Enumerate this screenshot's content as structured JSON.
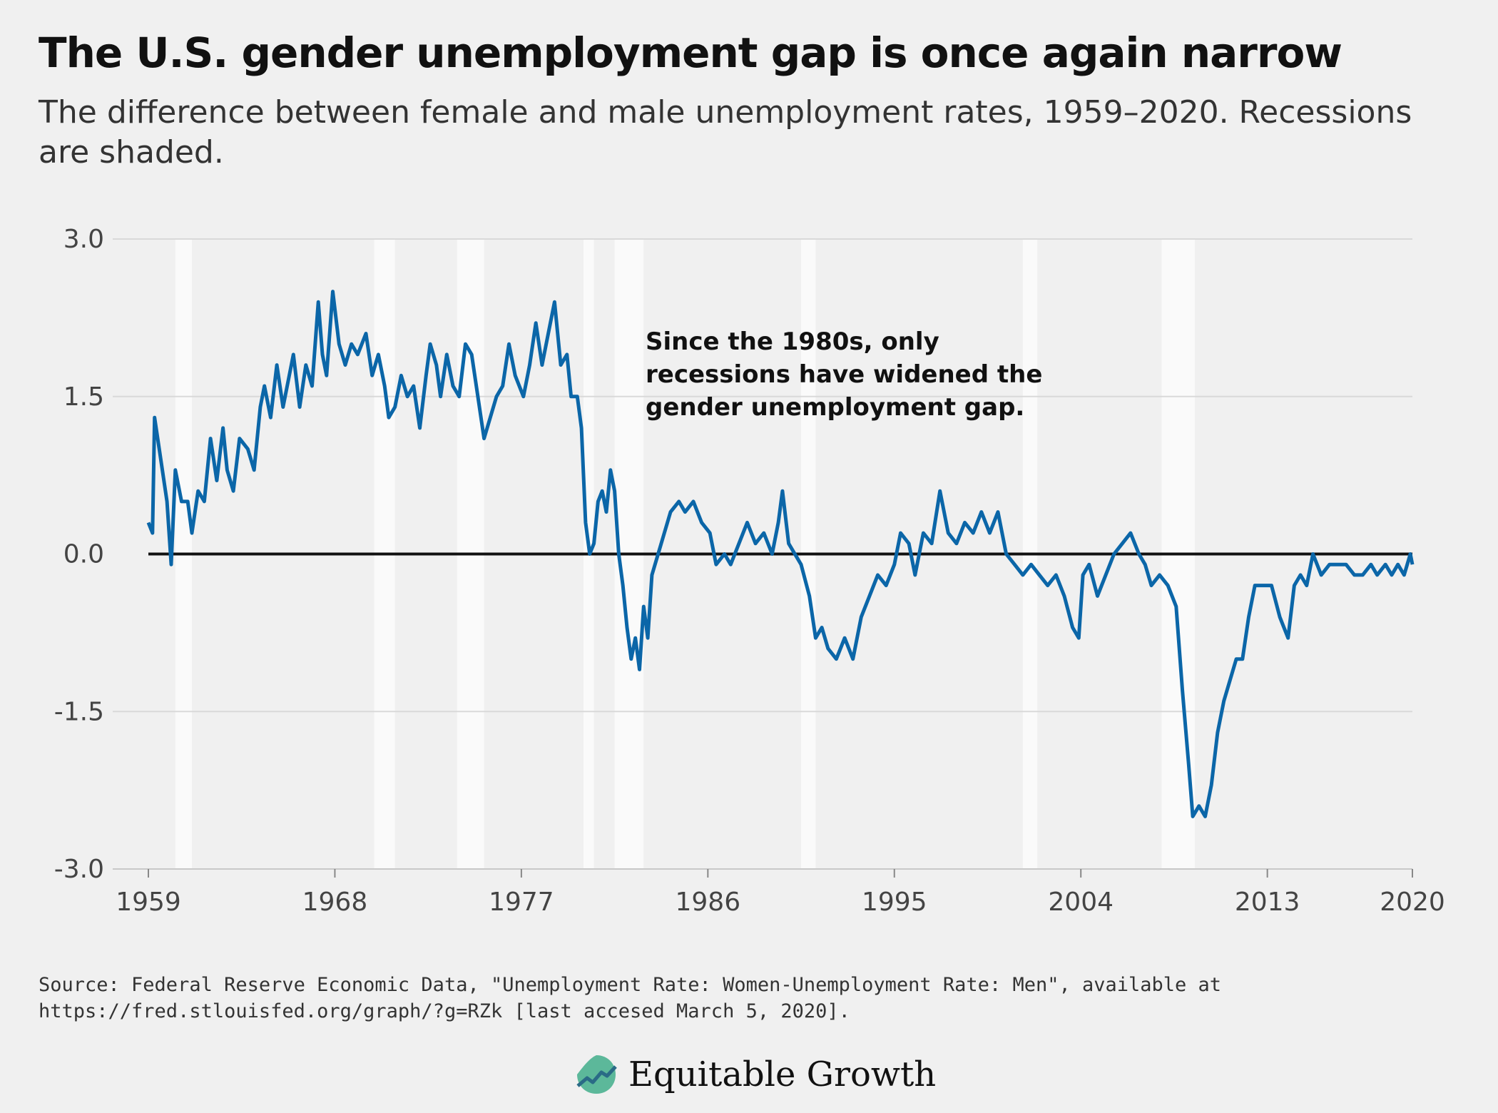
{
  "title": "The U.S. gender unemployment gap is once again narrow",
  "subtitle": "The difference between female and male unemployment rates, 1959–2020. Recessions are shaded.",
  "source": "Source: Federal Reserve Economic Data, \"Unemployment Rate: Women-Unemployment Rate: Men\", available at https://fred.stlouisfed.org/graph/?g=RZk [last accesed March 5, 2020].",
  "brand": {
    "name": "Equitable Growth",
    "logo_icon": "growth-leaf-chart-icon"
  },
  "colors": {
    "line": "#0b66a8",
    "zero_line": "#111111",
    "recession": "#fafafa",
    "grid": "#d9d9d9",
    "background": "#f0f0f0"
  },
  "chart_data": {
    "type": "line",
    "title": "",
    "xlabel": "",
    "ylabel": "",
    "xlim": [
      1959,
      2020
    ],
    "ylim": [
      -3.0,
      3.0
    ],
    "x_ticks": [
      1959,
      1968,
      1977,
      1986,
      1995,
      2004,
      2013,
      2020
    ],
    "y_ticks": [
      3.0,
      1.5,
      0.0,
      -1.5,
      -3.0
    ],
    "y_tick_labels": [
      "3.0",
      "1.5",
      "0.0",
      "-1.5",
      "-3.0"
    ],
    "grid": true,
    "recessions": [
      [
        1960.3,
        1961.1
      ],
      [
        1969.9,
        1970.9
      ],
      [
        1973.9,
        1975.2
      ],
      [
        1980.0,
        1980.5
      ],
      [
        1981.5,
        1982.9
      ],
      [
        1990.5,
        1991.2
      ],
      [
        2001.2,
        2001.9
      ],
      [
        2007.9,
        2009.5
      ]
    ],
    "annotation": "Since the 1980s, only recessions have widened the gender unemployment gap.",
    "annotation_lines": [
      "Since the 1980s, only",
      "recessions have widened the",
      "gender unemployment gap."
    ],
    "series": [
      {
        "values": [
          [
            1959.0,
            0.3
          ],
          [
            1959.2,
            0.2
          ],
          [
            1959.3,
            1.3
          ],
          [
            1959.6,
            0.9
          ],
          [
            1959.9,
            0.5
          ],
          [
            1960.1,
            -0.1
          ],
          [
            1960.3,
            0.8
          ],
          [
            1960.6,
            0.5
          ],
          [
            1960.9,
            0.5
          ],
          [
            1961.1,
            0.2
          ],
          [
            1961.4,
            0.6
          ],
          [
            1961.7,
            0.5
          ],
          [
            1962.0,
            1.1
          ],
          [
            1962.3,
            0.7
          ],
          [
            1962.6,
            1.2
          ],
          [
            1962.8,
            0.8
          ],
          [
            1963.1,
            0.6
          ],
          [
            1963.4,
            1.1
          ],
          [
            1963.8,
            1.0
          ],
          [
            1964.1,
            0.8
          ],
          [
            1964.4,
            1.4
          ],
          [
            1964.6,
            1.6
          ],
          [
            1964.9,
            1.3
          ],
          [
            1965.2,
            1.8
          ],
          [
            1965.5,
            1.4
          ],
          [
            1965.8,
            1.7
          ],
          [
            1966.0,
            1.9
          ],
          [
            1966.3,
            1.4
          ],
          [
            1966.6,
            1.8
          ],
          [
            1966.9,
            1.6
          ],
          [
            1967.2,
            2.4
          ],
          [
            1967.4,
            1.9
          ],
          [
            1967.6,
            1.7
          ],
          [
            1967.9,
            2.5
          ],
          [
            1968.2,
            2.0
          ],
          [
            1968.5,
            1.8
          ],
          [
            1968.8,
            2.0
          ],
          [
            1969.1,
            1.9
          ],
          [
            1969.5,
            2.1
          ],
          [
            1969.8,
            1.7
          ],
          [
            1970.1,
            1.9
          ],
          [
            1970.4,
            1.6
          ],
          [
            1970.6,
            1.3
          ],
          [
            1970.9,
            1.4
          ],
          [
            1971.2,
            1.7
          ],
          [
            1971.5,
            1.5
          ],
          [
            1971.8,
            1.6
          ],
          [
            1972.1,
            1.2
          ],
          [
            1972.4,
            1.7
          ],
          [
            1972.6,
            2.0
          ],
          [
            1972.9,
            1.8
          ],
          [
            1973.1,
            1.5
          ],
          [
            1973.4,
            1.9
          ],
          [
            1973.7,
            1.6
          ],
          [
            1974.0,
            1.5
          ],
          [
            1974.3,
            2.0
          ],
          [
            1974.6,
            1.9
          ],
          [
            1974.9,
            1.5
          ],
          [
            1975.2,
            1.1
          ],
          [
            1975.5,
            1.3
          ],
          [
            1975.8,
            1.5
          ],
          [
            1976.1,
            1.6
          ],
          [
            1976.4,
            2.0
          ],
          [
            1976.7,
            1.7
          ],
          [
            1977.1,
            1.5
          ],
          [
            1977.4,
            1.8
          ],
          [
            1977.7,
            2.2
          ],
          [
            1978.0,
            1.8
          ],
          [
            1978.3,
            2.1
          ],
          [
            1978.6,
            2.4
          ],
          [
            1978.9,
            1.8
          ],
          [
            1979.2,
            1.9
          ],
          [
            1979.4,
            1.5
          ],
          [
            1979.7,
            1.5
          ],
          [
            1979.9,
            1.2
          ],
          [
            1980.1,
            0.3
          ],
          [
            1980.3,
            0.0
          ],
          [
            1980.5,
            0.1
          ],
          [
            1980.7,
            0.5
          ],
          [
            1980.9,
            0.6
          ],
          [
            1981.1,
            0.4
          ],
          [
            1981.3,
            0.8
          ],
          [
            1981.5,
            0.6
          ],
          [
            1981.7,
            0.0
          ],
          [
            1981.9,
            -0.3
          ],
          [
            1982.1,
            -0.7
          ],
          [
            1982.3,
            -1.0
          ],
          [
            1982.5,
            -0.8
          ],
          [
            1982.7,
            -1.1
          ],
          [
            1982.9,
            -0.5
          ],
          [
            1983.1,
            -0.8
          ],
          [
            1983.3,
            -0.2
          ],
          [
            1983.6,
            0.0
          ],
          [
            1983.9,
            0.2
          ],
          [
            1984.2,
            0.4
          ],
          [
            1984.6,
            0.5
          ],
          [
            1984.9,
            0.4
          ],
          [
            1985.3,
            0.5
          ],
          [
            1985.7,
            0.3
          ],
          [
            1986.1,
            0.2
          ],
          [
            1986.4,
            -0.1
          ],
          [
            1986.8,
            0.0
          ],
          [
            1987.1,
            -0.1
          ],
          [
            1987.5,
            0.1
          ],
          [
            1987.9,
            0.3
          ],
          [
            1988.3,
            0.1
          ],
          [
            1988.7,
            0.2
          ],
          [
            1989.1,
            0.0
          ],
          [
            1989.4,
            0.3
          ],
          [
            1989.6,
            0.6
          ],
          [
            1989.9,
            0.1
          ],
          [
            1990.2,
            0.0
          ],
          [
            1990.5,
            -0.1
          ],
          [
            1990.9,
            -0.4
          ],
          [
            1991.2,
            -0.8
          ],
          [
            1991.5,
            -0.7
          ],
          [
            1991.8,
            -0.9
          ],
          [
            1992.2,
            -1.0
          ],
          [
            1992.6,
            -0.8
          ],
          [
            1993.0,
            -1.0
          ],
          [
            1993.4,
            -0.6
          ],
          [
            1993.8,
            -0.4
          ],
          [
            1994.2,
            -0.2
          ],
          [
            1994.6,
            -0.3
          ],
          [
            1995.0,
            -0.1
          ],
          [
            1995.3,
            0.2
          ],
          [
            1995.7,
            0.1
          ],
          [
            1996.0,
            -0.2
          ],
          [
            1996.4,
            0.2
          ],
          [
            1996.8,
            0.1
          ],
          [
            1997.2,
            0.6
          ],
          [
            1997.6,
            0.2
          ],
          [
            1998.0,
            0.1
          ],
          [
            1998.4,
            0.3
          ],
          [
            1998.8,
            0.2
          ],
          [
            1999.2,
            0.4
          ],
          [
            1999.6,
            0.2
          ],
          [
            2000.0,
            0.4
          ],
          [
            2000.4,
            0.0
          ],
          [
            2000.8,
            -0.1
          ],
          [
            2001.2,
            -0.2
          ],
          [
            2001.6,
            -0.1
          ],
          [
            2002.0,
            -0.2
          ],
          [
            2002.4,
            -0.3
          ],
          [
            2002.8,
            -0.2
          ],
          [
            2003.2,
            -0.4
          ],
          [
            2003.6,
            -0.7
          ],
          [
            2003.9,
            -0.8
          ],
          [
            2004.1,
            -0.2
          ],
          [
            2004.4,
            -0.1
          ],
          [
            2004.8,
            -0.4
          ],
          [
            2005.2,
            -0.2
          ],
          [
            2005.6,
            0.0
          ],
          [
            2006.0,
            0.1
          ],
          [
            2006.4,
            0.2
          ],
          [
            2006.8,
            0.0
          ],
          [
            2007.1,
            -0.1
          ],
          [
            2007.4,
            -0.3
          ],
          [
            2007.8,
            -0.2
          ],
          [
            2008.2,
            -0.3
          ],
          [
            2008.6,
            -0.5
          ],
          [
            2008.9,
            -1.3
          ],
          [
            2009.2,
            -2.0
          ],
          [
            2009.4,
            -2.5
          ],
          [
            2009.7,
            -2.4
          ],
          [
            2010.0,
            -2.5
          ],
          [
            2010.3,
            -2.2
          ],
          [
            2010.6,
            -1.7
          ],
          [
            2010.9,
            -1.4
          ],
          [
            2011.2,
            -1.2
          ],
          [
            2011.5,
            -1.0
          ],
          [
            2011.8,
            -1.0
          ],
          [
            2012.1,
            -0.6
          ],
          [
            2012.4,
            -0.3
          ],
          [
            2012.8,
            -0.3
          ],
          [
            2013.2,
            -0.3
          ],
          [
            2013.6,
            -0.6
          ],
          [
            2014.0,
            -0.8
          ],
          [
            2014.3,
            -0.3
          ],
          [
            2014.6,
            -0.2
          ],
          [
            2014.9,
            -0.3
          ],
          [
            2015.2,
            0.0
          ],
          [
            2015.6,
            -0.2
          ],
          [
            2016.0,
            -0.1
          ],
          [
            2016.4,
            -0.1
          ],
          [
            2016.8,
            -0.1
          ],
          [
            2017.2,
            -0.2
          ],
          [
            2017.6,
            -0.2
          ],
          [
            2018.0,
            -0.1
          ],
          [
            2018.3,
            -0.2
          ],
          [
            2018.7,
            -0.1
          ],
          [
            2019.0,
            -0.2
          ],
          [
            2019.3,
            -0.1
          ],
          [
            2019.6,
            -0.2
          ],
          [
            2019.9,
            0.0
          ],
          [
            2020.0,
            -0.1
          ]
        ]
      }
    ]
  }
}
